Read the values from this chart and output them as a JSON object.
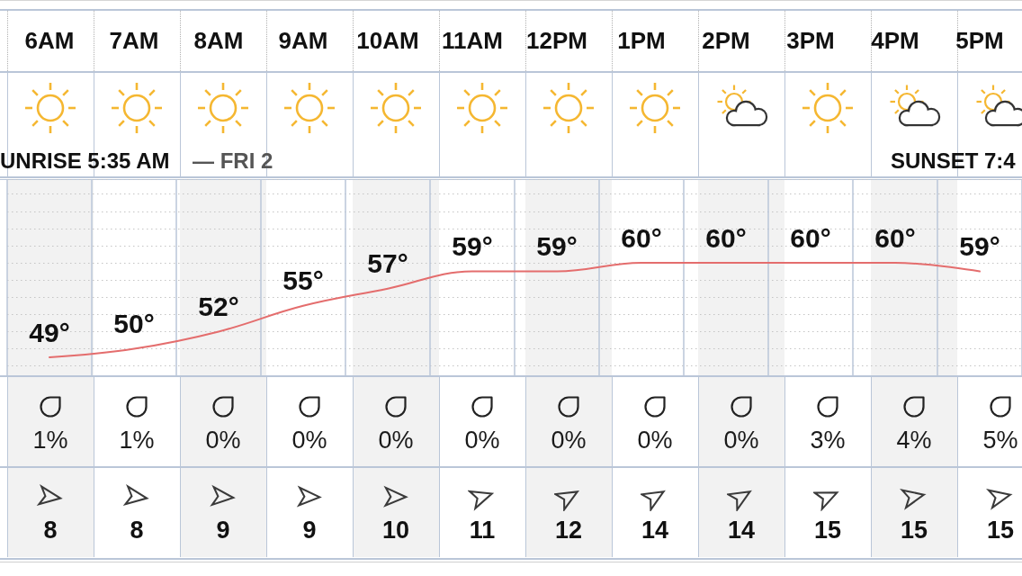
{
  "chart_data": [
    {
      "type": "line",
      "categories": [
        "6AM",
        "7AM",
        "8AM",
        "9AM",
        "10AM",
        "11AM",
        "12PM",
        "1PM",
        "2PM",
        "3PM",
        "4PM",
        "5PM"
      ],
      "values": [
        49,
        50,
        52,
        55,
        57,
        59,
        59,
        60,
        60,
        60,
        60,
        59
      ],
      "value_labels": [
        "49°",
        "50°",
        "52°",
        "55°",
        "57°",
        "59°",
        "59°",
        "60°",
        "60°",
        "60°",
        "60°",
        "59°"
      ],
      "color": "#e46d6d",
      "marker": "none",
      "line_style": "solid",
      "grid": true,
      "tick_labels": "x",
      "annotations": [
        "UNRISE 5:35 AM",
        "— FRI 2",
        "SUNSET 7:4"
      ]
    },
    {
      "type": "other",
      "values": [
        1,
        1,
        0,
        0,
        0,
        0,
        0,
        0,
        0,
        3,
        4,
        5
      ],
      "value_labels": [
        "1%",
        "1%",
        "0%",
        "0%",
        "0%",
        "0%",
        "0%",
        "0%",
        "0%",
        "3%",
        "4%",
        "5%"
      ]
    },
    {
      "type": "other",
      "values": [
        8,
        8,
        9,
        9,
        10,
        11,
        12,
        14,
        14,
        15,
        15,
        15
      ],
      "data_labels": true
    }
  ]
}
